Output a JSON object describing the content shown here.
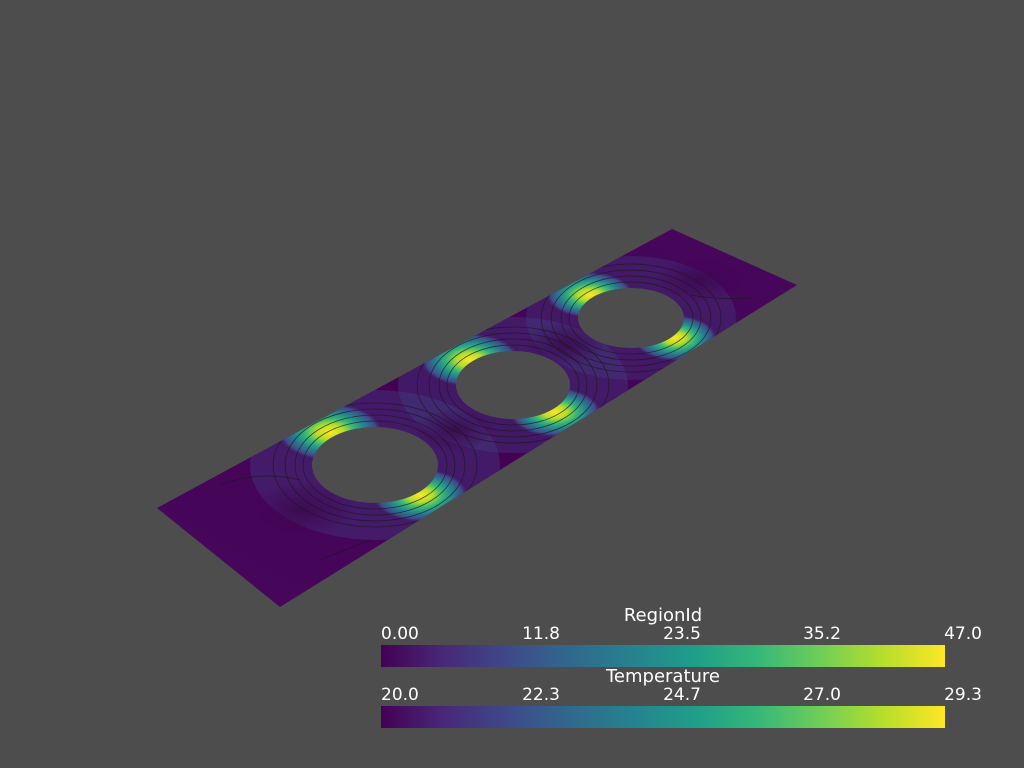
{
  "colors": {
    "background": "#4d4d4d",
    "viridis": [
      "#440154",
      "#482878",
      "#3e4989",
      "#31688e",
      "#26828e",
      "#1f9e89",
      "#35b779",
      "#6ece58",
      "#b5de2b",
      "#fde725"
    ],
    "contour_line": "#1a1a1a"
  },
  "scene": {
    "object": "plate with three circular holes",
    "colormap": "viridis",
    "contours_shown": true
  },
  "scalar_bars": [
    {
      "title": "RegionId",
      "ticks": [
        "0.00",
        "11.8",
        "23.5",
        "35.2",
        "47.0"
      ],
      "range": [
        0,
        47.0
      ]
    },
    {
      "title": "Temperature",
      "ticks": [
        "20.0",
        "22.3",
        "24.7",
        "27.0",
        "29.3"
      ],
      "range": [
        20.0,
        29.3
      ]
    }
  ]
}
